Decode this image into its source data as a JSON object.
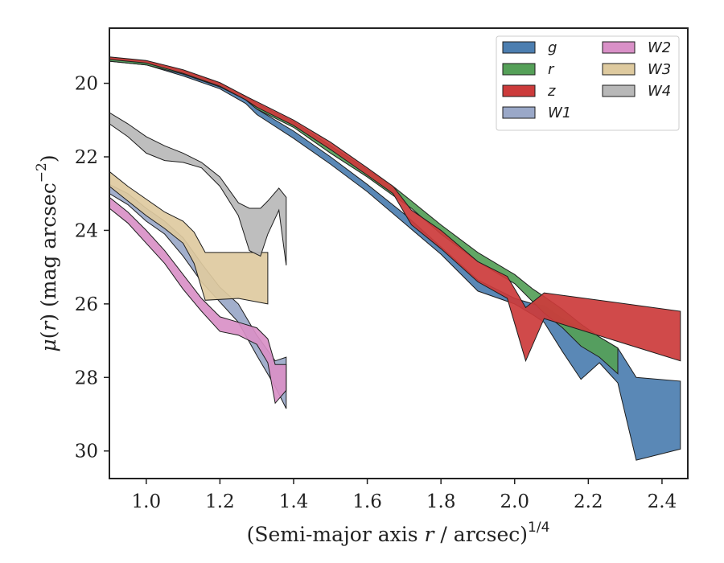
{
  "chart_data": {
    "type": "area",
    "xlabel": "(Semi-major axis r / arcsec)^{1/4}",
    "xlabel_parts": {
      "prefix": "(Semi-major axis ",
      "var": "r",
      "mid": " / arcsec)",
      "sup": "1/4"
    },
    "ylabel": "μ(r) (mag arcsec^{−2})",
    "ylabel_parts": {
      "mu": "μ",
      "open": "(",
      "var": "r",
      "close": ") (mag arcsec",
      "sup": "−2",
      "end": ")"
    },
    "xlim": [
      0.9,
      2.47
    ],
    "ylim": [
      30.75,
      18.5
    ],
    "y_inverted": true,
    "xticks": [
      1.0,
      1.2,
      1.4,
      1.6,
      1.8,
      2.0,
      2.2,
      2.4
    ],
    "xtick_labels": [
      "1.0",
      "1.2",
      "1.4",
      "1.6",
      "1.8",
      "2.0",
      "2.2",
      "2.4"
    ],
    "yticks": [
      20,
      22,
      24,
      26,
      28,
      30
    ],
    "ytick_labels": [
      "20",
      "22",
      "24",
      "26",
      "28",
      "30"
    ],
    "grid": false,
    "legend_position": "top-right",
    "legend_columns": 2,
    "series": [
      {
        "name": "g",
        "color": "#4c7eb0",
        "upper": [
          [
            0.9,
            19.35
          ],
          [
            1.0,
            19.45
          ],
          [
            1.1,
            19.7
          ],
          [
            1.2,
            20.05
          ],
          [
            1.27,
            20.45
          ],
          [
            1.3,
            20.7
          ],
          [
            1.4,
            21.3
          ],
          [
            1.5,
            22.0
          ],
          [
            1.6,
            22.75
          ],
          [
            1.7,
            23.55
          ],
          [
            1.8,
            24.45
          ],
          [
            1.9,
            25.35
          ],
          [
            2.0,
            25.85
          ],
          [
            2.05,
            26.0
          ],
          [
            2.08,
            26.05
          ],
          [
            2.13,
            26.4
          ],
          [
            2.18,
            26.7
          ],
          [
            2.23,
            26.9
          ],
          [
            2.28,
            27.2
          ],
          [
            2.33,
            28.0
          ],
          [
            2.45,
            28.1
          ]
        ],
        "lower": [
          [
            0.9,
            19.4
          ],
          [
            1.0,
            19.5
          ],
          [
            1.1,
            19.8
          ],
          [
            1.2,
            20.15
          ],
          [
            1.27,
            20.55
          ],
          [
            1.3,
            20.85
          ],
          [
            1.4,
            21.5
          ],
          [
            1.5,
            22.2
          ],
          [
            1.6,
            22.95
          ],
          [
            1.7,
            23.8
          ],
          [
            1.8,
            24.65
          ],
          [
            1.9,
            25.65
          ],
          [
            2.0,
            26.0
          ],
          [
            2.05,
            26.3
          ],
          [
            2.08,
            26.5
          ],
          [
            2.13,
            27.3
          ],
          [
            2.18,
            28.05
          ],
          [
            2.23,
            27.6
          ],
          [
            2.28,
            28.15
          ],
          [
            2.33,
            30.25
          ],
          [
            2.45,
            29.95
          ]
        ]
      },
      {
        "name": "r",
        "color": "#55a058",
        "upper": [
          [
            0.9,
            19.3
          ],
          [
            1.0,
            19.4
          ],
          [
            1.1,
            19.65
          ],
          [
            1.2,
            20.0
          ],
          [
            1.27,
            20.35
          ],
          [
            1.3,
            20.55
          ],
          [
            1.4,
            21.05
          ],
          [
            1.5,
            21.7
          ],
          [
            1.6,
            22.35
          ],
          [
            1.67,
            22.8
          ],
          [
            1.72,
            23.2
          ],
          [
            1.8,
            23.85
          ],
          [
            1.9,
            24.6
          ],
          [
            2.0,
            25.2
          ],
          [
            2.05,
            25.6
          ],
          [
            2.08,
            25.8
          ],
          [
            2.13,
            26.15
          ],
          [
            2.18,
            26.55
          ],
          [
            2.23,
            26.9
          ],
          [
            2.28,
            27.2
          ]
        ],
        "lower": [
          [
            0.9,
            19.4
          ],
          [
            1.0,
            19.5
          ],
          [
            1.1,
            19.75
          ],
          [
            1.2,
            20.1
          ],
          [
            1.27,
            20.45
          ],
          [
            1.3,
            20.7
          ],
          [
            1.4,
            21.2
          ],
          [
            1.5,
            21.9
          ],
          [
            1.6,
            22.55
          ],
          [
            1.67,
            23.05
          ],
          [
            1.72,
            23.4
          ],
          [
            1.8,
            24.1
          ],
          [
            1.9,
            24.85
          ],
          [
            2.0,
            25.45
          ],
          [
            2.05,
            25.95
          ],
          [
            2.08,
            26.25
          ],
          [
            2.13,
            26.65
          ],
          [
            2.18,
            27.15
          ],
          [
            2.23,
            27.45
          ],
          [
            2.28,
            27.9
          ]
        ]
      },
      {
        "name": "z",
        "color": "#cc3b3b",
        "upper": [
          [
            0.9,
            19.28
          ],
          [
            1.0,
            19.38
          ],
          [
            1.1,
            19.63
          ],
          [
            1.2,
            19.98
          ],
          [
            1.27,
            20.35
          ],
          [
            1.3,
            20.5
          ],
          [
            1.4,
            21.0
          ],
          [
            1.5,
            21.6
          ],
          [
            1.6,
            22.3
          ],
          [
            1.67,
            22.8
          ],
          [
            1.72,
            23.45
          ],
          [
            1.8,
            24.0
          ],
          [
            1.9,
            24.85
          ],
          [
            1.98,
            25.25
          ],
          [
            2.03,
            26.1
          ],
          [
            2.08,
            25.7
          ],
          [
            2.45,
            26.2
          ]
        ],
        "lower": [
          [
            0.9,
            19.35
          ],
          [
            1.0,
            19.45
          ],
          [
            1.1,
            19.73
          ],
          [
            1.2,
            20.08
          ],
          [
            1.27,
            20.45
          ],
          [
            1.3,
            20.65
          ],
          [
            1.4,
            21.15
          ],
          [
            1.5,
            21.8
          ],
          [
            1.6,
            22.5
          ],
          [
            1.67,
            23.0
          ],
          [
            1.72,
            23.85
          ],
          [
            1.8,
            24.5
          ],
          [
            1.9,
            25.4
          ],
          [
            1.98,
            25.85
          ],
          [
            2.03,
            27.55
          ],
          [
            2.08,
            26.4
          ],
          [
            2.45,
            27.55
          ]
        ]
      },
      {
        "name": "W1",
        "color": "#9aa8c8",
        "upper": [
          [
            0.9,
            22.75
          ],
          [
            0.95,
            23.0
          ],
          [
            1.0,
            23.4
          ],
          [
            1.05,
            23.75
          ],
          [
            1.1,
            24.2
          ],
          [
            1.15,
            24.9
          ],
          [
            1.2,
            25.55
          ],
          [
            1.25,
            26.0
          ],
          [
            1.3,
            26.85
          ],
          [
            1.35,
            27.55
          ],
          [
            1.38,
            27.45
          ]
        ],
        "lower": [
          [
            0.9,
            23.0
          ],
          [
            0.95,
            23.3
          ],
          [
            1.0,
            23.75
          ],
          [
            1.05,
            24.1
          ],
          [
            1.1,
            24.7
          ],
          [
            1.15,
            25.4
          ],
          [
            1.2,
            25.95
          ],
          [
            1.25,
            26.5
          ],
          [
            1.3,
            27.4
          ],
          [
            1.35,
            28.25
          ],
          [
            1.38,
            28.85
          ]
        ]
      },
      {
        "name": "W2",
        "color": "#d990c7",
        "upper": [
          [
            0.9,
            23.1
          ],
          [
            0.95,
            23.5
          ],
          [
            1.0,
            24.0
          ],
          [
            1.05,
            24.55
          ],
          [
            1.1,
            25.2
          ],
          [
            1.15,
            25.85
          ],
          [
            1.2,
            26.35
          ],
          [
            1.25,
            26.5
          ],
          [
            1.3,
            26.65
          ],
          [
            1.33,
            26.95
          ],
          [
            1.35,
            27.65
          ],
          [
            1.38,
            27.65
          ]
        ],
        "lower": [
          [
            0.9,
            23.4
          ],
          [
            0.95,
            23.8
          ],
          [
            1.0,
            24.35
          ],
          [
            1.05,
            24.9
          ],
          [
            1.1,
            25.6
          ],
          [
            1.15,
            26.2
          ],
          [
            1.2,
            26.75
          ],
          [
            1.25,
            26.85
          ],
          [
            1.3,
            27.1
          ],
          [
            1.33,
            27.6
          ],
          [
            1.35,
            28.7
          ],
          [
            1.38,
            28.35
          ]
        ]
      },
      {
        "name": "W3",
        "color": "#deca9f",
        "upper": [
          [
            0.9,
            22.4
          ],
          [
            0.95,
            22.8
          ],
          [
            1.0,
            23.15
          ],
          [
            1.05,
            23.5
          ],
          [
            1.1,
            23.75
          ],
          [
            1.13,
            24.05
          ],
          [
            1.16,
            24.6
          ],
          [
            1.25,
            24.6
          ],
          [
            1.33,
            24.6
          ]
        ],
        "lower": [
          [
            0.9,
            22.8
          ],
          [
            0.95,
            23.2
          ],
          [
            1.0,
            23.6
          ],
          [
            1.05,
            23.95
          ],
          [
            1.1,
            24.35
          ],
          [
            1.13,
            24.9
          ],
          [
            1.16,
            25.9
          ],
          [
            1.25,
            25.85
          ],
          [
            1.33,
            26.0
          ]
        ]
      },
      {
        "name": "W4",
        "color": "#b8b8b8",
        "upper": [
          [
            0.9,
            20.8
          ],
          [
            0.95,
            21.1
          ],
          [
            1.0,
            21.45
          ],
          [
            1.05,
            21.7
          ],
          [
            1.1,
            21.9
          ],
          [
            1.15,
            22.15
          ],
          [
            1.2,
            22.55
          ],
          [
            1.25,
            23.25
          ],
          [
            1.28,
            23.4
          ],
          [
            1.31,
            23.4
          ],
          [
            1.33,
            23.2
          ],
          [
            1.36,
            22.85
          ],
          [
            1.38,
            23.1
          ]
        ],
        "lower": [
          [
            0.9,
            21.1
          ],
          [
            0.95,
            21.45
          ],
          [
            1.0,
            21.9
          ],
          [
            1.05,
            22.1
          ],
          [
            1.1,
            22.15
          ],
          [
            1.15,
            22.3
          ],
          [
            1.2,
            22.8
          ],
          [
            1.25,
            23.6
          ],
          [
            1.28,
            24.55
          ],
          [
            1.31,
            24.7
          ],
          [
            1.33,
            24.1
          ],
          [
            1.36,
            23.45
          ],
          [
            1.38,
            24.95
          ]
        ]
      }
    ]
  }
}
